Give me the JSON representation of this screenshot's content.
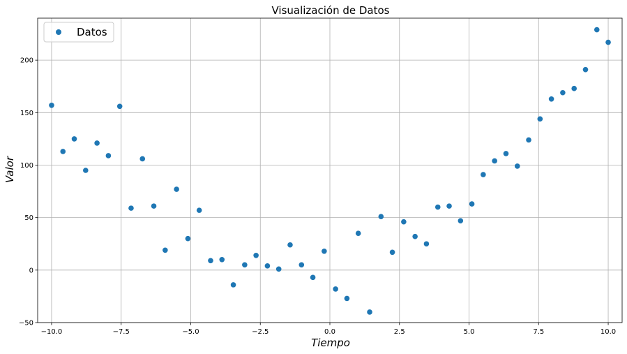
{
  "chart_data": {
    "type": "scatter",
    "title": "Visualización de Datos",
    "xlabel": "Tiempo",
    "ylabel": "Valor",
    "xlim": [
      -10.5,
      10.5
    ],
    "ylim": [
      -50,
      240
    ],
    "xticks": [
      -10.0,
      -7.5,
      -5.0,
      -2.5,
      0.0,
      2.5,
      5.0,
      7.5,
      10.0
    ],
    "xtick_labels": [
      "−10.0",
      "−7.5",
      "−5.0",
      "−2.5",
      "0.0",
      "2.5",
      "5.0",
      "7.5",
      "10.0"
    ],
    "yticks": [
      -50,
      0,
      50,
      100,
      150,
      200
    ],
    "ytick_labels": [
      "−50",
      "0",
      "50",
      "100",
      "150",
      "200"
    ],
    "grid": true,
    "legend_position": "top-left",
    "color": "#1f77b4",
    "series": [
      {
        "name": "Datos",
        "x": [
          -10.0,
          -9.592,
          -9.184,
          -8.776,
          -8.367,
          -7.959,
          -7.551,
          -7.143,
          -6.735,
          -6.327,
          -5.918,
          -5.51,
          -5.102,
          -4.694,
          -4.286,
          -3.878,
          -3.469,
          -3.061,
          -2.653,
          -2.245,
          -1.837,
          -1.429,
          -1.02,
          -0.612,
          -0.204,
          0.204,
          0.612,
          1.02,
          1.429,
          1.837,
          2.245,
          2.653,
          3.061,
          3.469,
          3.878,
          4.286,
          4.694,
          5.102,
          5.51,
          5.918,
          6.327,
          6.735,
          7.143,
          7.551,
          7.959,
          8.367,
          8.776,
          9.184,
          9.592,
          10.0
        ],
        "y": [
          157,
          113,
          125,
          95,
          121,
          109,
          156,
          59,
          106,
          61,
          19,
          77,
          30,
          57,
          9,
          10,
          -14,
          5,
          14,
          4,
          1,
          24,
          5,
          -7,
          18,
          -18,
          -27,
          35,
          -40,
          51,
          17,
          46,
          32,
          25,
          60,
          61,
          47,
          63,
          91,
          104,
          111,
          99,
          124,
          144,
          163,
          169,
          173,
          191,
          229,
          217
        ]
      }
    ]
  }
}
